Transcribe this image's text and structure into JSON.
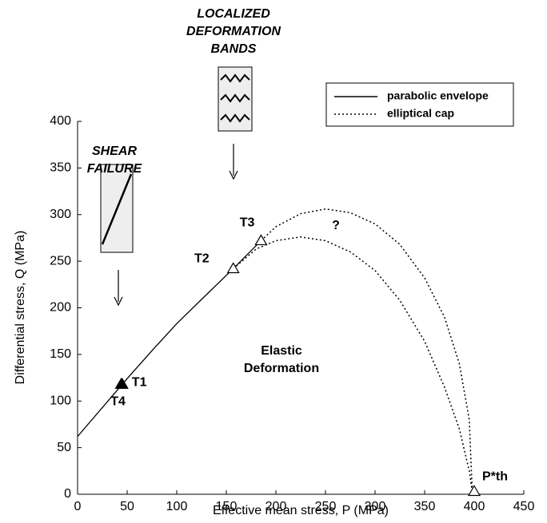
{
  "chart_data": {
    "type": "line",
    "xlabel": "Effective mean stress, P (MPa)",
    "ylabel": "Differential stress, Q (MPa)",
    "xlim": [
      0,
      450
    ],
    "ylim": [
      0,
      400
    ],
    "xticks": [
      0,
      50,
      100,
      150,
      200,
      250,
      300,
      350,
      400,
      450
    ],
    "yticks": [
      0,
      50,
      100,
      150,
      200,
      250,
      300,
      350,
      400
    ],
    "legend": "upper right",
    "series": [
      {
        "name": "parabolic envelope",
        "color": "#000000",
        "linestyle": "solid",
        "x": [
          0,
          25,
          50,
          75,
          100,
          125,
          157,
          185
        ],
        "values": [
          62,
          93,
          124,
          154,
          183,
          209,
          242,
          272
        ]
      },
      {
        "name": "elliptical cap",
        "color": "#000000",
        "linestyle": "dotted",
        "x": [
          157,
          180,
          200,
          225,
          250,
          275,
          300,
          325,
          350,
          370,
          385,
          395,
          398,
          null,
          185,
          200,
          225,
          250,
          275,
          300,
          325,
          350,
          370,
          385,
          395,
          398
        ],
        "values": [
          242,
          263,
          272,
          276,
          272,
          260,
          240,
          208,
          164,
          115,
          70,
          25,
          3,
          null,
          272,
          287,
          301,
          306,
          302,
          290,
          268,
          232,
          190,
          140,
          80,
          3
        ]
      }
    ],
    "points": [
      {
        "label": "T1",
        "x": 45,
        "y": 118,
        "filled": true
      },
      {
        "label": "T4",
        "x": 44,
        "y": 118,
        "filled": true
      },
      {
        "label": "T2",
        "x": 157,
        "y": 242,
        "filled": false
      },
      {
        "label": "T3",
        "x": 185,
        "y": 272,
        "filled": false
      },
      {
        "label": "P*th",
        "x": 400,
        "y": 3,
        "filled": false
      }
    ],
    "annotations": [
      {
        "lines": [
          "SHEAR",
          "FAILURE"
        ]
      },
      {
        "lines": [
          "LOCALIZED",
          "DEFORMATION",
          "BANDS"
        ]
      },
      {
        "lines": [
          "Elastic",
          "Deformation"
        ]
      },
      {
        "lines": [
          "?"
        ]
      }
    ]
  }
}
